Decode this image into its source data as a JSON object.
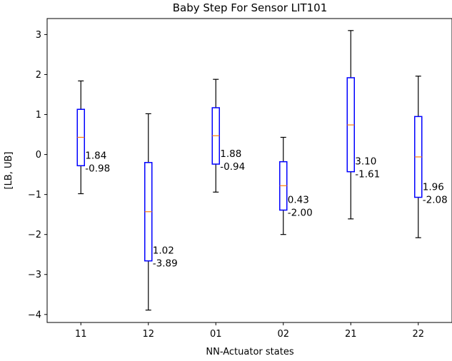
{
  "chart_data": {
    "type": "box",
    "title": "Baby Step For Sensor LIT101",
    "xlabel": "NN-Actuator states",
    "ylabel": "[LB, UB]",
    "ylim": [
      -4.2,
      3.4
    ],
    "yticks": [
      -4,
      -3,
      -2,
      -1,
      0,
      1,
      2,
      3
    ],
    "grid": false,
    "categories": [
      "11",
      "12",
      "01",
      "02",
      "21",
      "22"
    ],
    "boxes": [
      {
        "category": "11",
        "whisker_low": -0.98,
        "q1": -0.28,
        "median": 0.43,
        "q3": 1.13,
        "whisker_high": 1.84,
        "label_ub": "1.84",
        "label_lb": "-0.98"
      },
      {
        "category": "12",
        "whisker_low": -3.89,
        "q1": -2.66,
        "median": -1.43,
        "q3": -0.2,
        "whisker_high": 1.02,
        "label_ub": "1.02",
        "label_lb": "-3.89"
      },
      {
        "category": "01",
        "whisker_low": -0.94,
        "q1": -0.24,
        "median": 0.47,
        "q3": 1.17,
        "whisker_high": 1.88,
        "label_ub": "1.88",
        "label_lb": "-0.94"
      },
      {
        "category": "02",
        "whisker_low": -2.0,
        "q1": -1.39,
        "median": -0.78,
        "q3": -0.18,
        "whisker_high": 0.43,
        "label_ub": "0.43",
        "label_lb": "-2.00"
      },
      {
        "category": "21",
        "whisker_low": -1.61,
        "q1": -0.43,
        "median": 0.74,
        "q3": 1.92,
        "whisker_high": 3.1,
        "label_ub": "3.10",
        "label_lb": "-1.61"
      },
      {
        "category": "22",
        "whisker_low": -2.08,
        "q1": -1.07,
        "median": -0.06,
        "q3": 0.95,
        "whisker_high": 1.96,
        "label_ub": "1.96",
        "label_lb": "-2.08"
      }
    ],
    "colors": {
      "box": "#0000ff",
      "median": "#ff7f0e",
      "whisker": "#000000"
    }
  }
}
